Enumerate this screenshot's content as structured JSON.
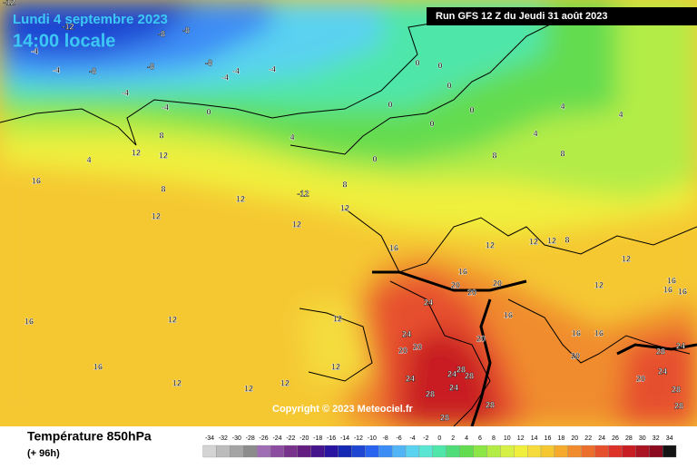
{
  "header": {
    "date": "Lundi 4 septembre 2023",
    "time": "14:00 locale",
    "run": "Run GFS 12 Z du Jeudi 31 août 2023"
  },
  "map": {
    "copyright": "Copyright © 2023 Meteociel.fr",
    "labels": [
      -12,
      -12,
      -8,
      -8,
      -4,
      -4,
      -8,
      -8,
      -4,
      -4,
      -4,
      -8,
      -4,
      -4,
      0,
      0,
      0,
      0,
      0,
      0,
      0,
      0,
      4,
      8,
      12,
      12,
      4,
      8,
      12,
      -12,
      12,
      12,
      12,
      8,
      8,
      8,
      4,
      4,
      4,
      16,
      12,
      12,
      12,
      8,
      12,
      16,
      20,
      20,
      20,
      24,
      16,
      24,
      20,
      20,
      20,
      12,
      12,
      16,
      16,
      20,
      24,
      28,
      24,
      20,
      28,
      24,
      28,
      24,
      24,
      28,
      28,
      28,
      28,
      28,
      16,
      12,
      16,
      16,
      12,
      12,
      12,
      16,
      16,
      12,
      16
    ]
  },
  "footer": {
    "variable": "Température 850hPa",
    "lead": "(+ 96h)"
  },
  "legend": {
    "ticks": [
      -34,
      -32,
      -30,
      -28,
      -26,
      -24,
      -22,
      -20,
      -18,
      -16,
      -14,
      -12,
      -10,
      -8,
      -6,
      -4,
      -2,
      0,
      2,
      4,
      6,
      8,
      10,
      12,
      14,
      16,
      18,
      20,
      22,
      24,
      26,
      28,
      30,
      32,
      34
    ],
    "colors": [
      "#d4d4d4",
      "#bcbcbc",
      "#a4a4a4",
      "#8c8c8c",
      "#a06eb4",
      "#8c4ca0",
      "#78328c",
      "#641e82",
      "#46148c",
      "#2814a0",
      "#1428b4",
      "#1e46d2",
      "#2864f0",
      "#3c8cf5",
      "#50b4f5",
      "#5ad2f0",
      "#5ae6d2",
      "#50e6aa",
      "#50dc78",
      "#64dc50",
      "#8ce646",
      "#b4ec46",
      "#d7f046",
      "#f0f03c",
      "#f5dc3c",
      "#f5c832",
      "#f5aa2d",
      "#f08c2d",
      "#eb6e2d",
      "#e6502d",
      "#dc3228",
      "#c81e23",
      "#aa1423",
      "#8c0a1e",
      "#141414"
    ]
  }
}
